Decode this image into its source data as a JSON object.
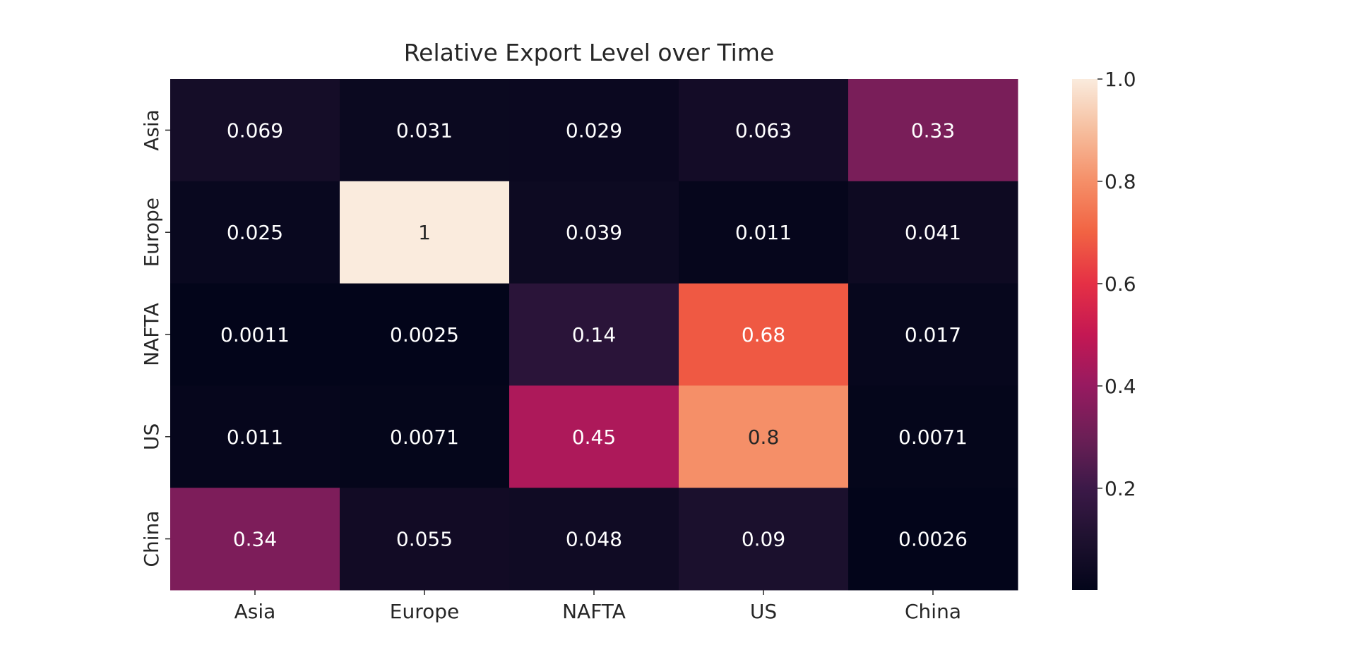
{
  "chart_data": {
    "type": "heatmap",
    "title": "Relative Export Level over Time",
    "xlabel": "",
    "ylabel": "",
    "x_categories": [
      "Asia",
      "Europe",
      "NAFTA",
      "US",
      "China"
    ],
    "y_categories": [
      "Asia",
      "Europe",
      "NAFTA",
      "US",
      "China"
    ],
    "values": [
      [
        0.069,
        0.031,
        0.029,
        0.063,
        0.33
      ],
      [
        0.025,
        1,
        0.039,
        0.011,
        0.041
      ],
      [
        0.0011,
        0.0025,
        0.14,
        0.68,
        0.017
      ],
      [
        0.011,
        0.0071,
        0.45,
        0.8,
        0.0071
      ],
      [
        0.34,
        0.055,
        0.048,
        0.09,
        0.0026
      ]
    ],
    "value_labels": [
      [
        "0.069",
        "0.031",
        "0.029",
        "0.063",
        "0.33"
      ],
      [
        "0.025",
        "1",
        "0.039",
        "0.011",
        "0.041"
      ],
      [
        "0.0011",
        "0.0025",
        "0.14",
        "0.68",
        "0.017"
      ],
      [
        "0.011",
        "0.0071",
        "0.45",
        "0.8",
        "0.0071"
      ],
      [
        "0.34",
        "0.055",
        "0.048",
        "0.09",
        "0.0026"
      ]
    ],
    "colorscale": "rocket",
    "vmin": 0.0011,
    "vmax": 1.0,
    "colorbar": {
      "ticks": [
        0.2,
        0.4,
        0.6,
        0.8,
        1.0
      ],
      "tick_labels": [
        "0.2",
        "0.4",
        "0.6",
        "0.8",
        "1.0"
      ],
      "placement": "right"
    },
    "grid": false,
    "legend": "none"
  }
}
